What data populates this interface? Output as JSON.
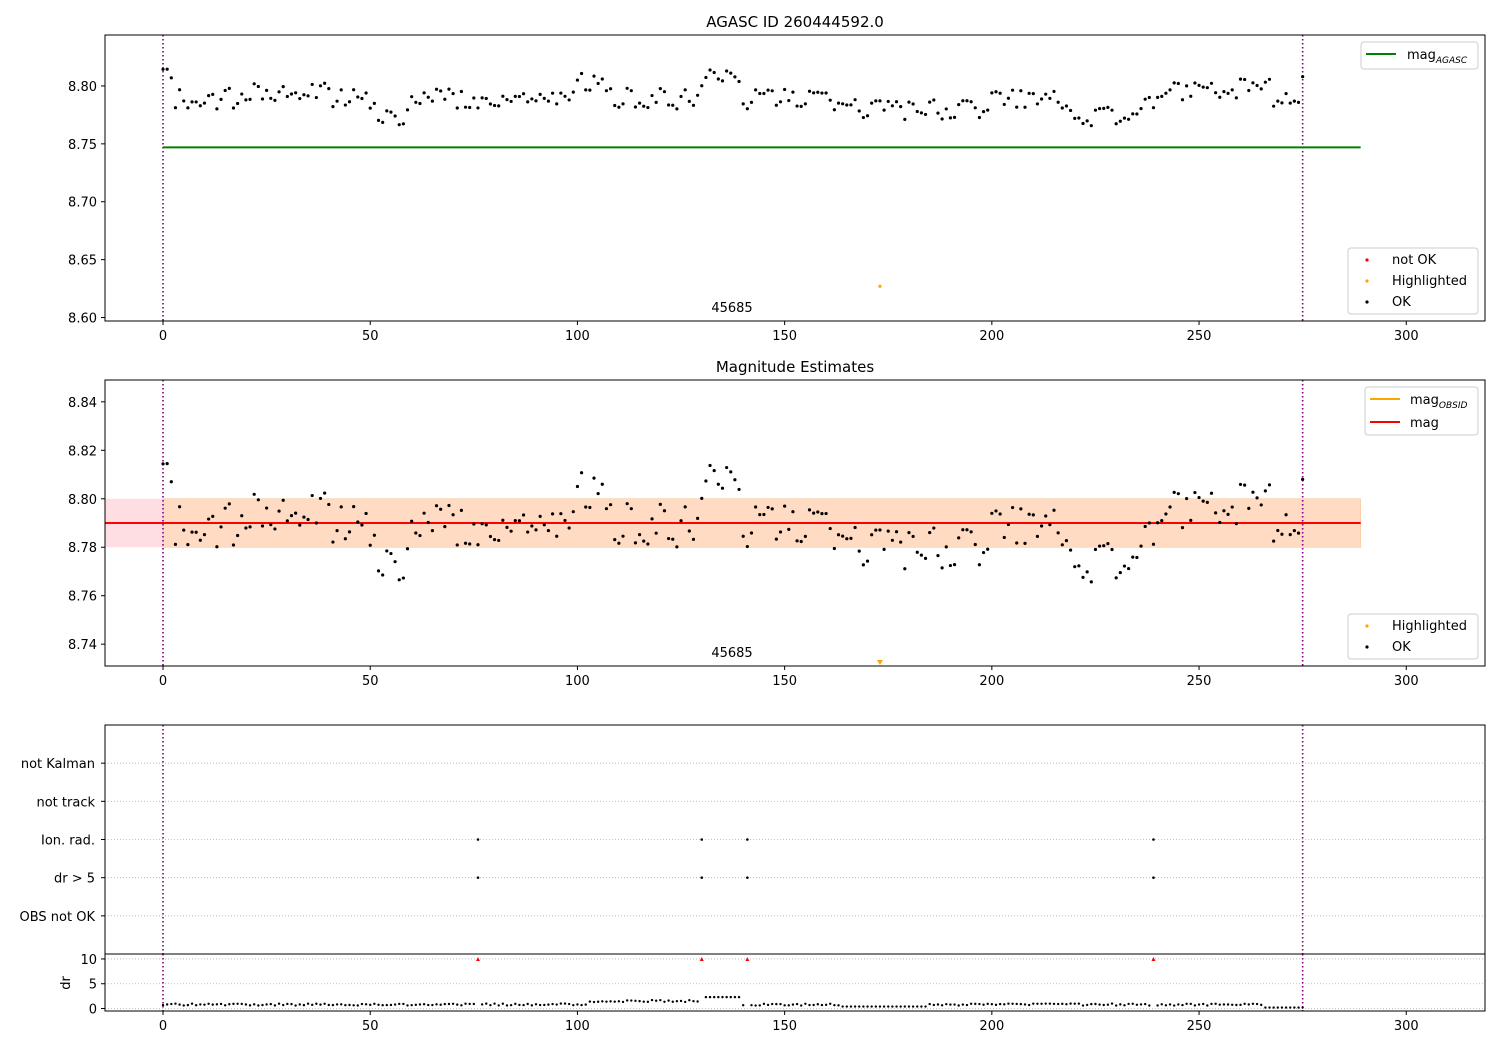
{
  "colors": {
    "ok": "#000000",
    "highlighted": "#ffa500",
    "not_ok": "#ff0000",
    "mag_agasc": "#008000",
    "mag": "#ff0000",
    "mag_obsid": "#ffa500",
    "obs_vline": "#800080",
    "band_mag": "#ffb6c1",
    "band_obsid": "#ffdab9"
  },
  "chart_data": [
    {
      "type": "scatter",
      "title": "AGASC ID 260444592.0",
      "xlim": [
        -14,
        319
      ],
      "ylim": [
        8.597,
        8.844
      ],
      "xticks": [
        "0",
        "50",
        "100",
        "150",
        "200",
        "250",
        "300"
      ],
      "xtick_values": [
        0,
        50,
        100,
        150,
        200,
        250,
        300
      ],
      "yticks": [
        "8.60",
        "8.65",
        "8.70",
        "8.75",
        "8.80"
      ],
      "ytick_values": [
        8.6,
        8.65,
        8.7,
        8.75,
        8.8
      ],
      "obsid_label": "45685",
      "obs_boundaries": [
        0,
        275
      ],
      "mag_agasc": 8.747,
      "mag_agasc_range": [
        0,
        289
      ],
      "highlighted": [
        {
          "x": 173,
          "y": 8.627
        }
      ],
      "ok_first": 8.806,
      "ok_last": 8.808,
      "legend_lines": [
        "mag",
        "AGASC"
      ],
      "legend_points": [
        "not OK",
        "Highlighted",
        "OK"
      ]
    },
    {
      "type": "scatter",
      "title": "Magnitude Estimates",
      "xlim": [
        -14,
        319
      ],
      "ylim": [
        8.731,
        8.849
      ],
      "xticks": [
        "0",
        "50",
        "100",
        "150",
        "200",
        "250",
        "300"
      ],
      "xtick_values": [
        0,
        50,
        100,
        150,
        200,
        250,
        300
      ],
      "yticks": [
        "8.74",
        "8.76",
        "8.78",
        "8.80",
        "8.82",
        "8.84"
      ],
      "ytick_values": [
        8.74,
        8.76,
        8.78,
        8.8,
        8.82,
        8.84
      ],
      "obsid_label": "45685",
      "obs_boundaries": [
        0,
        275
      ],
      "mag": 8.79,
      "mag_band": [
        8.78,
        8.8
      ],
      "mag_range": [
        -14,
        289
      ],
      "mag_obsid": 8.79,
      "mag_obsid_band": [
        8.78,
        8.8
      ],
      "mag_obsid_range": [
        0,
        289
      ],
      "highlighted": [
        {
          "x": 173,
          "y": 8.732,
          "marker": "down-triangle"
        }
      ],
      "legend_lines": [
        "mag",
        "OBSID",
        "mag"
      ],
      "legend_points": [
        "Highlighted",
        "OK"
      ]
    },
    {
      "type": "scatter",
      "title": "",
      "xlim": [
        -14,
        319
      ],
      "flag_labels": [
        "not Kalman",
        "not track",
        "Ion. rad.",
        "dr > 5",
        "OBS not OK"
      ],
      "flag_points": {
        "Ion. rad.": [
          76,
          130,
          141,
          239
        ],
        "dr > 5": [
          76,
          130,
          141,
          239
        ]
      },
      "obs_boundaries": [
        0,
        275
      ]
    },
    {
      "type": "scatter",
      "title": "",
      "ylabel": "dr",
      "xlim": [
        -14,
        319
      ],
      "ylim": [
        -0.5,
        11
      ],
      "xticks": [
        "0",
        "50",
        "100",
        "150",
        "200",
        "250",
        "300"
      ],
      "xtick_values": [
        0,
        50,
        100,
        150,
        200,
        250,
        300
      ],
      "yticks": [
        "0",
        "5",
        "10"
      ],
      "ytick_values": [
        0,
        5,
        10
      ],
      "dr_outliers": [
        76,
        130,
        141,
        239
      ],
      "dr_outlier_y": 10,
      "obs_boundaries": [
        0,
        275
      ]
    }
  ]
}
